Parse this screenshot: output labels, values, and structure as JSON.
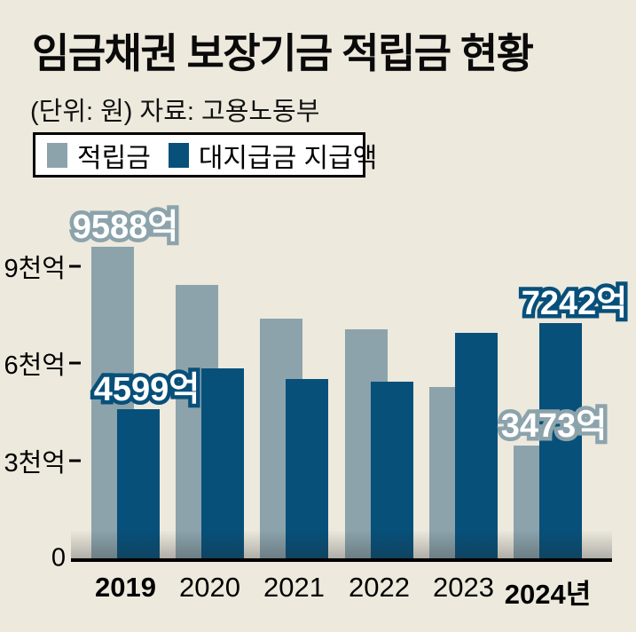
{
  "header": {
    "title": "임금채권 보장기금 적립금 현황",
    "unit_note": "(단위: 원)",
    "source": "자료: 고용노동부"
  },
  "chart_data": {
    "type": "bar",
    "title": "임금채권 보장기금 적립금 현황",
    "unit_note": "(단위: 원)",
    "source": "자료: 고용노동부",
    "categories": [
      "2019",
      "2020",
      "2021",
      "2022",
      "2023",
      "2024"
    ],
    "x_axis_labels": [
      "2019",
      "2020",
      "2021",
      "2022",
      "2023",
      "2024년"
    ],
    "x_axis_bold": [
      true,
      false,
      false,
      false,
      false,
      true
    ],
    "series": [
      {
        "name": "적립금",
        "color": "#8ca3ac",
        "values": [
          9588,
          8410,
          7380,
          7050,
          5270,
          3473
        ]
      },
      {
        "name": "대지급금 지급액",
        "color": "#07507a",
        "values": [
          4599,
          5850,
          5520,
          5440,
          6940,
          7242
        ]
      }
    ],
    "value_unit": "억",
    "ylim": [
      0,
      9800
    ],
    "yticks": [
      {
        "value": 0,
        "label": "0"
      },
      {
        "value": 3000,
        "label": "3천억"
      },
      {
        "value": 6000,
        "label": "6천억"
      },
      {
        "value": 9000,
        "label": "9천억"
      }
    ],
    "grid": false,
    "legend_position": "top-left",
    "annotations": [
      {
        "text": "9588억",
        "series": 0,
        "year": 0,
        "dx": 0
      },
      {
        "text": "4599억",
        "series": 1,
        "year": 0,
        "dx": 24
      },
      {
        "text": "3473억",
        "series": 0,
        "year": 5,
        "dx": 7
      },
      {
        "text": "7242억",
        "series": 1,
        "year": 5,
        "dx": 30
      }
    ]
  },
  "colors": {
    "background": "#ede9dd",
    "reserve_bar": "#8ca3ac",
    "payment_bar": "#07507a",
    "axis": "#000000",
    "annotation_fill": "#ffffff"
  }
}
